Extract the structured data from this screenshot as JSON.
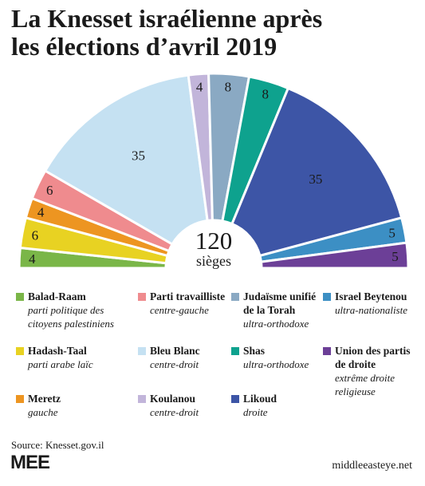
{
  "title_lines": [
    "La Knesset israélienne après",
    "les élections d’avril 2019"
  ],
  "chart_data": {
    "type": "pie",
    "subtype": "parliament-half-donut",
    "total": "120",
    "total_label": "sièges",
    "segments": [
      {
        "name": "Balad-Raam",
        "description": [
          "parti politique des",
          "citoyens palestiniens"
        ],
        "seats": 4,
        "color": "#7ab648"
      },
      {
        "name": "Hadash-Taal",
        "description": [
          "parti arabe laïc"
        ],
        "seats": 6,
        "color": "#e8d222"
      },
      {
        "name": "Meretz",
        "description": [
          "gauche"
        ],
        "seats": 4,
        "color": "#ed9521"
      },
      {
        "name": "Parti travailliste",
        "description": [
          "centre-gauche"
        ],
        "seats": 6,
        "color": "#ef8b8e"
      },
      {
        "name": "Bleu Blanc",
        "description": [
          "centre-droit"
        ],
        "seats": 35,
        "color": "#c5e1f2"
      },
      {
        "name": "Koulanou",
        "description": [
          "centre-droit"
        ],
        "seats": 4,
        "color": "#c2b5da"
      },
      {
        "name": "Judaïsme unifié de la Torah",
        "legend_lines": [
          "Judaïsme unifié",
          "de la Torah"
        ],
        "description": [
          "ultra-orthodoxe"
        ],
        "seats": 8,
        "color": "#8aa9c3"
      },
      {
        "name": "Shas",
        "description": [
          "ultra-orthodoxe"
        ],
        "seats": 8,
        "color": "#0ea28e"
      },
      {
        "name": "Likoud",
        "description": [
          "droite"
        ],
        "seats": 35,
        "color": "#3d55a6"
      },
      {
        "name": "Israel Beytenou",
        "description": [
          "ultra-nationaliste"
        ],
        "seats": 5,
        "color": "#3c8fc4"
      },
      {
        "name": "Union des partis de droite",
        "legend_lines": [
          "Union des partis",
          "de droite"
        ],
        "description": [
          "extrême droite",
          "religieuse"
        ],
        "seats": 5,
        "color": "#6c3f97"
      }
    ]
  },
  "legend_order": [
    [
      "Balad-Raam",
      "Hadash-Taal",
      "Meretz"
    ],
    [
      "Parti travailliste",
      "Bleu Blanc",
      "Koulanou"
    ],
    [
      "Judaïsme unifié de la Torah",
      "Shas",
      "Likoud"
    ],
    [
      "Israel Beytenou",
      "Union des partis de droite"
    ]
  ],
  "source": "Source: Knesset.gov.il",
  "logo_text": "MEE",
  "site": "middleeasteye.net"
}
